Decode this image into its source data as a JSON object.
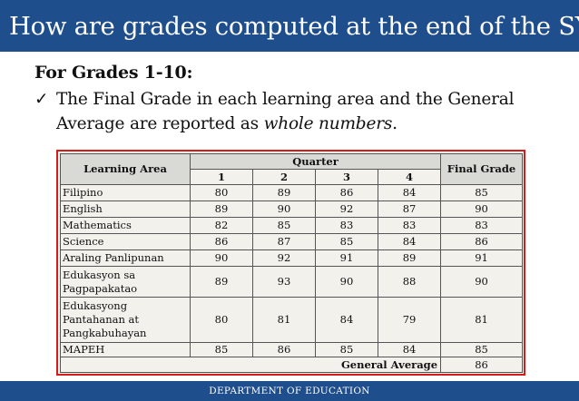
{
  "slide": {
    "title": "How are grades computed at the end of the SY?",
    "subheading": "For Grades 1-10:",
    "bullet_check": "✓",
    "bullet_line1": "The Final Grade in each learning area and the General",
    "bullet_line2_before": "Average are reported as ",
    "bullet_line2_italic": "whole numbers",
    "bullet_line2_after": ".",
    "footer": "DEPARTMENT OF EDUCATION"
  },
  "colors": {
    "title_bar": "#1f4e8c",
    "table_border": "#d41c1c"
  },
  "table": {
    "header_learning_area": "Learning Area",
    "header_quarter": "Quarter",
    "header_final_grade": "Final Grade",
    "quarters": [
      "1",
      "2",
      "3",
      "4"
    ],
    "rows": [
      {
        "area": "Filipino",
        "q": [
          "80",
          "89",
          "86",
          "84"
        ],
        "final": "85"
      },
      {
        "area": "English",
        "q": [
          "89",
          "90",
          "92",
          "87"
        ],
        "final": "90"
      },
      {
        "area": "Mathematics",
        "q": [
          "82",
          "85",
          "83",
          "83"
        ],
        "final": "83"
      },
      {
        "area": "Science",
        "q": [
          "86",
          "87",
          "85",
          "84"
        ],
        "final": "86"
      },
      {
        "area": "Araling Panlipunan",
        "q": [
          "90",
          "92",
          "91",
          "89"
        ],
        "final": "91"
      },
      {
        "area": "Edukasyon sa Pagpapakatao",
        "q": [
          "89",
          "93",
          "90",
          "88"
        ],
        "final": "90"
      },
      {
        "area": "Edukasyong Pantahanan at Pangkabuhayan",
        "q": [
          "80",
          "81",
          "84",
          "79"
        ],
        "final": "81"
      },
      {
        "area": "MAPEH",
        "q": [
          "85",
          "86",
          "85",
          "84"
        ],
        "final": "85"
      }
    ],
    "general_average_label": "General Average",
    "general_average": "86"
  }
}
